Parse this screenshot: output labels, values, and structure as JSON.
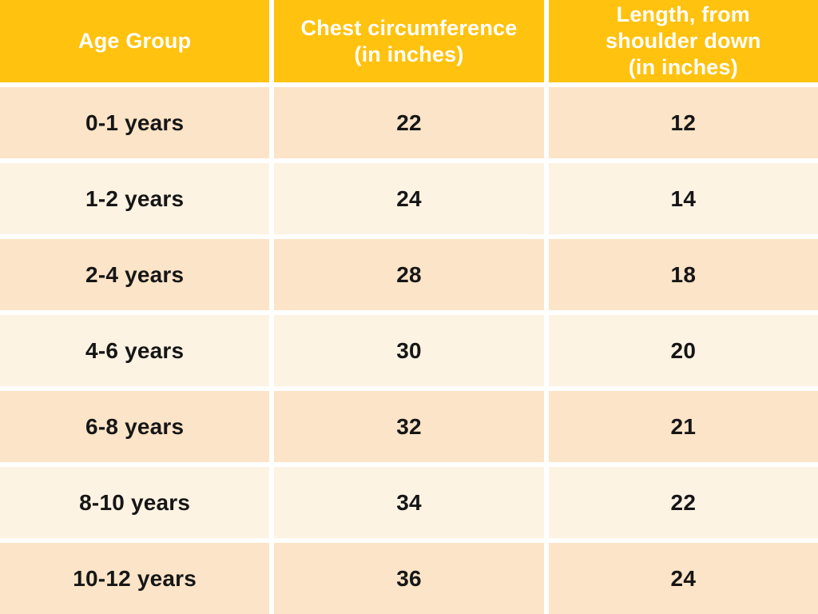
{
  "colors": {
    "header_bg": "#FFC20E",
    "header_text": "#FFFFFF",
    "row_dark_bg": "#FBE4C7",
    "row_light_bg": "#FDF3E3",
    "cell_text": "#161616",
    "divider": "#FFFFFF"
  },
  "table": {
    "headers": [
      "Age Group",
      "Chest circumference\n(in inches)",
      "Length, from\nshoulder down\n(in inches)"
    ],
    "rows": [
      [
        "0-1 years",
        "22",
        "12"
      ],
      [
        "1-2 years",
        "24",
        "14"
      ],
      [
        "2-4 years",
        "28",
        "18"
      ],
      [
        "4-6 years",
        "30",
        "20"
      ],
      [
        "6-8 years",
        "32",
        "21"
      ],
      [
        "8-10 years",
        "34",
        "22"
      ],
      [
        "10-12 years",
        "36",
        "24"
      ]
    ]
  },
  "chart_data": {
    "type": "table",
    "columns": [
      "Age Group",
      "Chest circumference (in inches)",
      "Length, from shoulder down (in inches)"
    ],
    "rows": [
      {
        "age_group": "0-1 years",
        "chest_circumference_in": 22,
        "length_shoulder_down_in": 12
      },
      {
        "age_group": "1-2 years",
        "chest_circumference_in": 24,
        "length_shoulder_down_in": 14
      },
      {
        "age_group": "2-4 years",
        "chest_circumference_in": 28,
        "length_shoulder_down_in": 18
      },
      {
        "age_group": "4-6 years",
        "chest_circumference_in": 30,
        "length_shoulder_down_in": 20
      },
      {
        "age_group": "6-8 years",
        "chest_circumference_in": 32,
        "length_shoulder_down_in": 21
      },
      {
        "age_group": "8-10 years",
        "chest_circumference_in": 34,
        "length_shoulder_down_in": 22
      },
      {
        "age_group": "10-12 years",
        "chest_circumference_in": 36,
        "length_shoulder_down_in": 24
      }
    ]
  }
}
